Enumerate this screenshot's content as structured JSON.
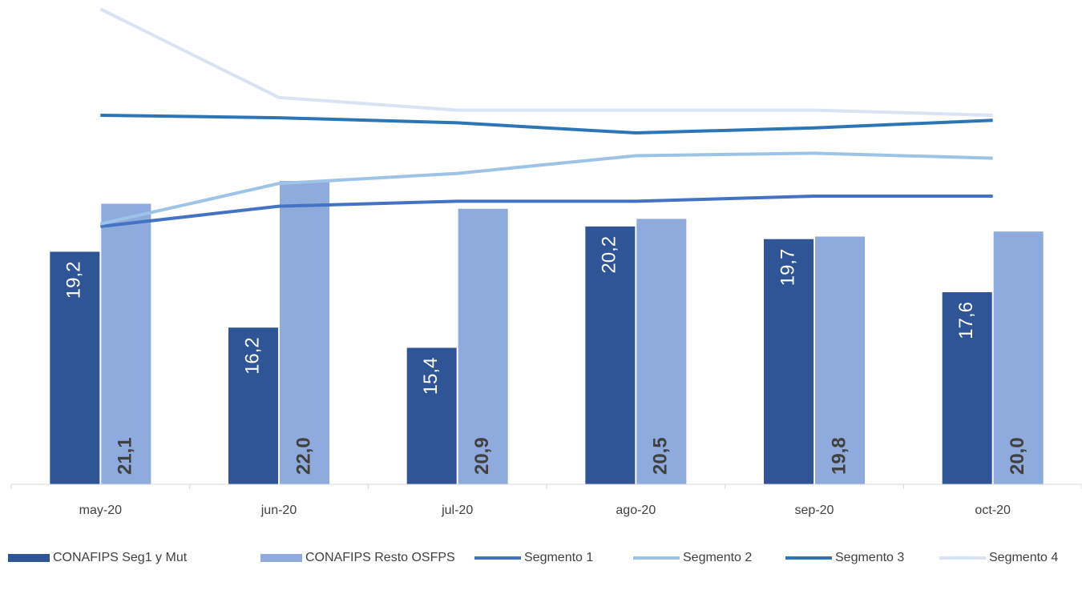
{
  "chart_data": {
    "type": "bar",
    "categories": [
      "may-20",
      "jun-20",
      "jul-20",
      "ago-20",
      "sep-20",
      "oct-20"
    ],
    "ylim": [
      10,
      29
    ],
    "legend": "bottom",
    "series": [
      {
        "name": "CONAFIPS Seg1 y Mut",
        "type": "bar",
        "color": "#2f5597",
        "values": [
          19.2,
          16.2,
          15.4,
          20.2,
          19.7,
          17.6
        ],
        "value_labels": [
          "19,2",
          "16,2",
          "15,4",
          "20,2",
          "19,7",
          "17,6"
        ]
      },
      {
        "name": "CONAFIPS Resto OSFPS",
        "type": "bar",
        "color": "#8faadc",
        "values": [
          21.1,
          22.0,
          20.9,
          20.5,
          19.8,
          20.0
        ],
        "value_labels": [
          "21,1",
          "22,0",
          "20,9",
          "20,5",
          "19,8",
          "20,0"
        ]
      },
      {
        "name": "Segmento 1",
        "type": "line",
        "color": "#4472c4",
        "values": [
          20.2,
          21.0,
          21.2,
          21.2,
          21.4,
          21.4
        ]
      },
      {
        "name": "Segmento 2",
        "type": "line",
        "color": "#9dc3e6",
        "values": [
          20.3,
          21.9,
          22.3,
          23.0,
          23.1,
          22.9
        ]
      },
      {
        "name": "Segmento 3",
        "type": "line",
        "color": "#2e75b6",
        "values": [
          24.6,
          24.5,
          24.3,
          23.9,
          24.1,
          24.4
        ]
      },
      {
        "name": "Segmento 4",
        "type": "line",
        "color": "#dae3f3",
        "values": [
          28.8,
          25.3,
          24.8,
          24.8,
          24.8,
          24.6
        ]
      }
    ]
  }
}
